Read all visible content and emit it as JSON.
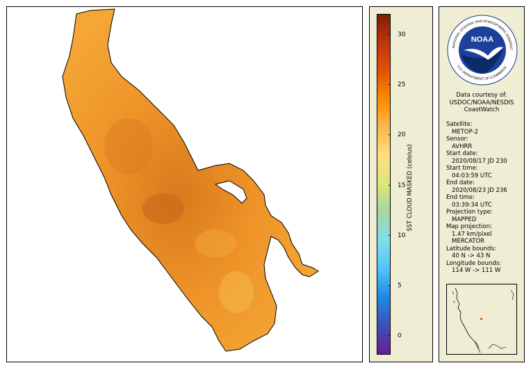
{
  "colorbar": {
    "title": "SST CLOUD MASKED (celsius)",
    "ticks": [
      "30",
      "25",
      "20",
      "15",
      "10",
      "5",
      "0"
    ],
    "colors": [
      "#6a1b9a",
      "#3f51b5",
      "#1e88e5",
      "#4fc3f7",
      "#80deea",
      "#a5d6a7",
      "#dce775",
      "#ffe082",
      "#ffb74d",
      "#fb8c00",
      "#e65100",
      "#bf360c",
      "#7f1d07"
    ]
  },
  "map": {
    "lake_fill": "#f29a2e",
    "deep_fill": "#d4701a",
    "light_fill": "#f5b84a"
  },
  "logo": {
    "ring_text": "NATIONAL OCEANIC AND ATMOSPHERIC ADMINISTRATION",
    "bottom_text": "U.S. DEPARTMENT OF COMMERCE",
    "wordmark": "NOAA"
  },
  "courtesy": [
    "Data courtesy of:",
    "USDOC/NOAA/NESDIS",
    "CoastWatch"
  ],
  "metadata": [
    {
      "label": "Satellite:",
      "value": "METOP-2"
    },
    {
      "label": "Sensor:",
      "value": "AVHRR"
    },
    {
      "label": "Start date:",
      "value": "2020/08/17 JD 230"
    },
    {
      "label": "Start time:",
      "value": "04:03:59 UTC"
    },
    {
      "label": "End date:",
      "value": "2020/08/23 JD 236"
    },
    {
      "label": "End time:",
      "value": "03:39:34 UTC"
    },
    {
      "label": "Projection type:",
      "value": "MAPPED"
    },
    {
      "label": "Map projection:",
      "value": "1.47 km/pixel"
    },
    {
      "label": "",
      "value": "MERCATOR"
    },
    {
      "label": "Latitude bounds:",
      "value": "40 N -> 43 N"
    },
    {
      "label": "Longitude bounds:",
      "value": "114 W -> 111 W"
    }
  ]
}
